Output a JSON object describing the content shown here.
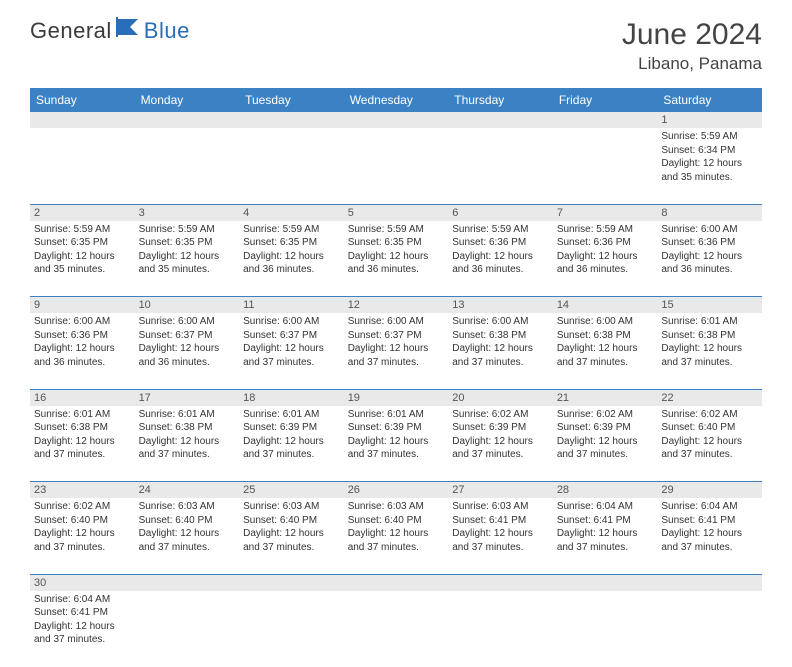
{
  "brand": {
    "part1": "General",
    "part2": "Blue",
    "accent_color": "#2a6db8",
    "text_color": "#3a3a3a"
  },
  "title": "June 2024",
  "location": "Libano, Panama",
  "header_bg": "#3a82c4",
  "header_text_color": "#ffffff",
  "daynum_bg": "#e9e9e9",
  "row_border_color": "#3a82c4",
  "fonts": {
    "title_size": 30,
    "location_size": 17,
    "header_size": 12,
    "cell_size": 10,
    "daynum_size": 11
  },
  "weekdays": [
    "Sunday",
    "Monday",
    "Tuesday",
    "Wednesday",
    "Thursday",
    "Friday",
    "Saturday"
  ],
  "weeks": [
    [
      null,
      null,
      null,
      null,
      null,
      null,
      {
        "d": "1",
        "sr": "5:59 AM",
        "ss": "6:34 PM",
        "dl": "12 hours and 35 minutes."
      }
    ],
    [
      {
        "d": "2",
        "sr": "5:59 AM",
        "ss": "6:35 PM",
        "dl": "12 hours and 35 minutes."
      },
      {
        "d": "3",
        "sr": "5:59 AM",
        "ss": "6:35 PM",
        "dl": "12 hours and 35 minutes."
      },
      {
        "d": "4",
        "sr": "5:59 AM",
        "ss": "6:35 PM",
        "dl": "12 hours and 36 minutes."
      },
      {
        "d": "5",
        "sr": "5:59 AM",
        "ss": "6:35 PM",
        "dl": "12 hours and 36 minutes."
      },
      {
        "d": "6",
        "sr": "5:59 AM",
        "ss": "6:36 PM",
        "dl": "12 hours and 36 minutes."
      },
      {
        "d": "7",
        "sr": "5:59 AM",
        "ss": "6:36 PM",
        "dl": "12 hours and 36 minutes."
      },
      {
        "d": "8",
        "sr": "6:00 AM",
        "ss": "6:36 PM",
        "dl": "12 hours and 36 minutes."
      }
    ],
    [
      {
        "d": "9",
        "sr": "6:00 AM",
        "ss": "6:36 PM",
        "dl": "12 hours and 36 minutes."
      },
      {
        "d": "10",
        "sr": "6:00 AM",
        "ss": "6:37 PM",
        "dl": "12 hours and 36 minutes."
      },
      {
        "d": "11",
        "sr": "6:00 AM",
        "ss": "6:37 PM",
        "dl": "12 hours and 37 minutes."
      },
      {
        "d": "12",
        "sr": "6:00 AM",
        "ss": "6:37 PM",
        "dl": "12 hours and 37 minutes."
      },
      {
        "d": "13",
        "sr": "6:00 AM",
        "ss": "6:38 PM",
        "dl": "12 hours and 37 minutes."
      },
      {
        "d": "14",
        "sr": "6:00 AM",
        "ss": "6:38 PM",
        "dl": "12 hours and 37 minutes."
      },
      {
        "d": "15",
        "sr": "6:01 AM",
        "ss": "6:38 PM",
        "dl": "12 hours and 37 minutes."
      }
    ],
    [
      {
        "d": "16",
        "sr": "6:01 AM",
        "ss": "6:38 PM",
        "dl": "12 hours and 37 minutes."
      },
      {
        "d": "17",
        "sr": "6:01 AM",
        "ss": "6:38 PM",
        "dl": "12 hours and 37 minutes."
      },
      {
        "d": "18",
        "sr": "6:01 AM",
        "ss": "6:39 PM",
        "dl": "12 hours and 37 minutes."
      },
      {
        "d": "19",
        "sr": "6:01 AM",
        "ss": "6:39 PM",
        "dl": "12 hours and 37 minutes."
      },
      {
        "d": "20",
        "sr": "6:02 AM",
        "ss": "6:39 PM",
        "dl": "12 hours and 37 minutes."
      },
      {
        "d": "21",
        "sr": "6:02 AM",
        "ss": "6:39 PM",
        "dl": "12 hours and 37 minutes."
      },
      {
        "d": "22",
        "sr": "6:02 AM",
        "ss": "6:40 PM",
        "dl": "12 hours and 37 minutes."
      }
    ],
    [
      {
        "d": "23",
        "sr": "6:02 AM",
        "ss": "6:40 PM",
        "dl": "12 hours and 37 minutes."
      },
      {
        "d": "24",
        "sr": "6:03 AM",
        "ss": "6:40 PM",
        "dl": "12 hours and 37 minutes."
      },
      {
        "d": "25",
        "sr": "6:03 AM",
        "ss": "6:40 PM",
        "dl": "12 hours and 37 minutes."
      },
      {
        "d": "26",
        "sr": "6:03 AM",
        "ss": "6:40 PM",
        "dl": "12 hours and 37 minutes."
      },
      {
        "d": "27",
        "sr": "6:03 AM",
        "ss": "6:41 PM",
        "dl": "12 hours and 37 minutes."
      },
      {
        "d": "28",
        "sr": "6:04 AM",
        "ss": "6:41 PM",
        "dl": "12 hours and 37 minutes."
      },
      {
        "d": "29",
        "sr": "6:04 AM",
        "ss": "6:41 PM",
        "dl": "12 hours and 37 minutes."
      }
    ],
    [
      {
        "d": "30",
        "sr": "6:04 AM",
        "ss": "6:41 PM",
        "dl": "12 hours and 37 minutes."
      },
      null,
      null,
      null,
      null,
      null,
      null
    ]
  ],
  "labels": {
    "sunrise": "Sunrise:",
    "sunset": "Sunset:",
    "daylight": "Daylight:"
  }
}
